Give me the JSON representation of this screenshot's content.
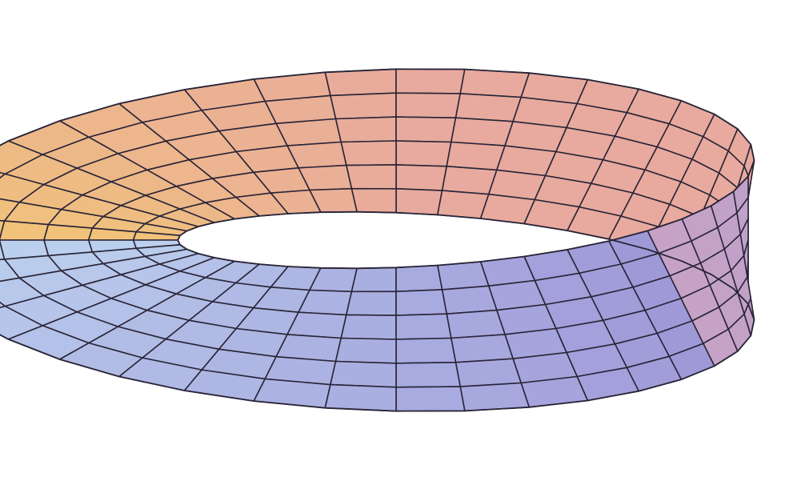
{
  "figure": {
    "kind": "mobius-strip-surface-plot",
    "background_color": "#ffffff",
    "mesh_color": "#2a2538",
    "palette": {
      "warm_edge": "#f1c27a",
      "warm_mid": "#e8aa9e",
      "lavender": "#c9a3c6",
      "violet": "#9f99d8",
      "deep_blue": "#2e33ab",
      "light_blue": "#bdd3ef"
    },
    "mesh": {
      "segments_around": 40,
      "segments_across": 6
    }
  }
}
